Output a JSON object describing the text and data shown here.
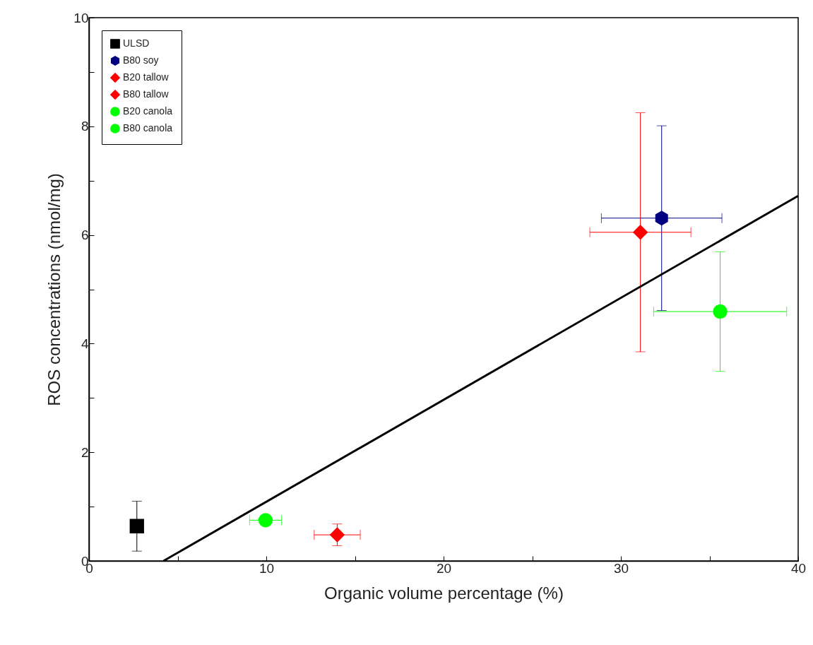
{
  "chart_data": {
    "type": "scatter",
    "xlabel": "Organic volume percentage (%)",
    "ylabel": "ROS concentrations (nmol/mg)",
    "xlim": [
      0,
      40
    ],
    "ylim": [
      0,
      10
    ],
    "xticks": [
      0,
      {
        "value": 5,
        "label": null
      },
      10,
      {
        "value": 15,
        "label": null
      },
      20,
      {
        "value": 25,
        "label": null
      },
      30,
      {
        "value": 35,
        "label": null
      },
      40
    ],
    "yticks": [
      0,
      {
        "value": 1,
        "label": null
      },
      2,
      {
        "value": 3,
        "label": null
      },
      4,
      {
        "value": 5,
        "label": null
      },
      6,
      {
        "value": 7,
        "label": null
      },
      8,
      {
        "value": 9,
        "label": null
      },
      10
    ],
    "grid": false,
    "legend": "top left",
    "series": [
      {
        "name": "ULSD",
        "color": "#000000",
        "marker": "square",
        "x": [
          2.7
        ],
        "values": [
          0.64
        ],
        "errors": [
          0.46
        ],
        "xerrors": [
          null
        ]
      },
      {
        "name": "B80 soy",
        "color": "#000080",
        "x": [
          32.3
        ],
        "values": [
          6.31
        ],
        "errors": [
          1.7
        ],
        "xerrors": [
          3.4
        ]
      },
      {
        "name": "B20 tallow",
        "color": "#ff0000",
        "marker": "diamond",
        "x": [
          14.0
        ],
        "values": [
          0.48
        ],
        "errors": [
          0.2
        ],
        "xerrors": [
          1.3
        ]
      },
      {
        "name": "B80 tallow",
        "color": "#ff0000",
        "marker": "diamond",
        "x": [
          31.1
        ],
        "values": [
          6.05
        ],
        "errors": [
          2.2
        ],
        "xerrors": [
          2.85
        ]
      },
      {
        "name": "B20 canola",
        "color": "#00ff00",
        "marker": "circle",
        "x": [
          9.96
        ],
        "values": [
          0.75
        ],
        "errors": [
          null
        ],
        "xerrors": [
          0.9
        ]
      },
      {
        "name": "B80 canola",
        "color": "#00ff00",
        "marker": "circle",
        "x": [
          35.6
        ],
        "values": [
          4.59
        ],
        "errors": [
          1.1
        ],
        "xerrors": [
          3.75
        ]
      },
      {
        "type": "line",
        "color": "#000000",
        "x": [
          4.2,
          40
        ],
        "values": [
          0,
          6.72
        ]
      }
    ]
  }
}
